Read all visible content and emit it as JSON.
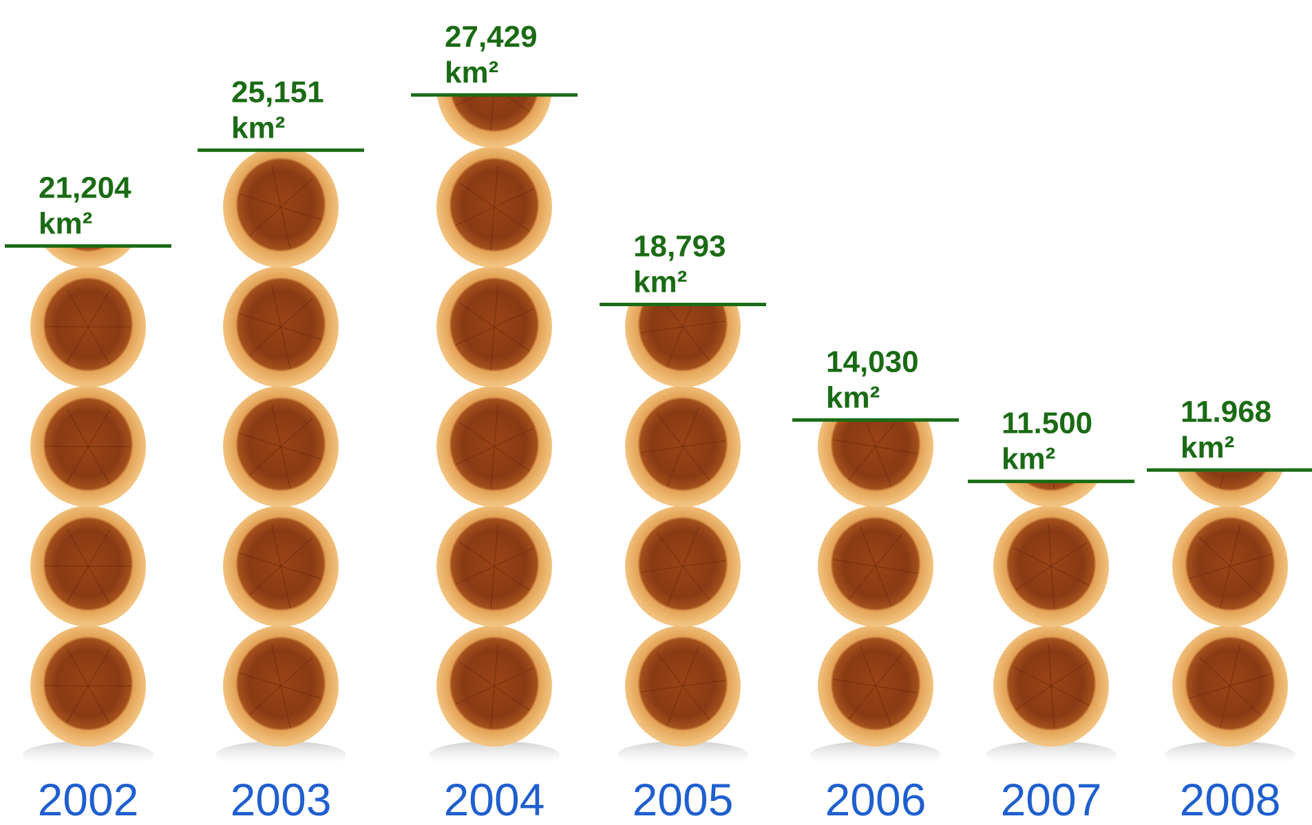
{
  "chart_data": {
    "type": "pictograph",
    "categories": [
      "2002",
      "2003",
      "2004",
      "2005",
      "2006",
      "2007",
      "2008"
    ],
    "values": [
      21204,
      25151,
      27429,
      18793,
      14030,
      11500,
      11968
    ],
    "value_labels": [
      "21,204",
      "25,151",
      "27,429",
      "18,793",
      "14,030",
      "11.500",
      "11.968"
    ],
    "unit": "km²",
    "color": "#1a6b14"
  }
}
